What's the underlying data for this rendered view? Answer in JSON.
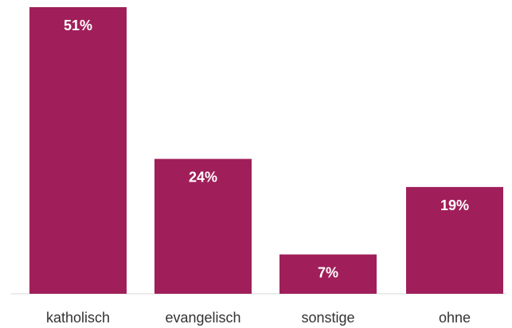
{
  "chart_data": {
    "type": "bar",
    "categories": [
      "katholisch",
      "evangelisch",
      "sonstige",
      "ohne"
    ],
    "values": [
      51,
      24,
      7,
      19
    ],
    "data_labels": [
      "51%",
      "24%",
      "7%",
      "19%"
    ],
    "title": "",
    "xlabel": "",
    "ylabel": "",
    "ylim": [
      0,
      51
    ],
    "grid": false,
    "legend": "none",
    "bar_color": "#a01f5a"
  }
}
